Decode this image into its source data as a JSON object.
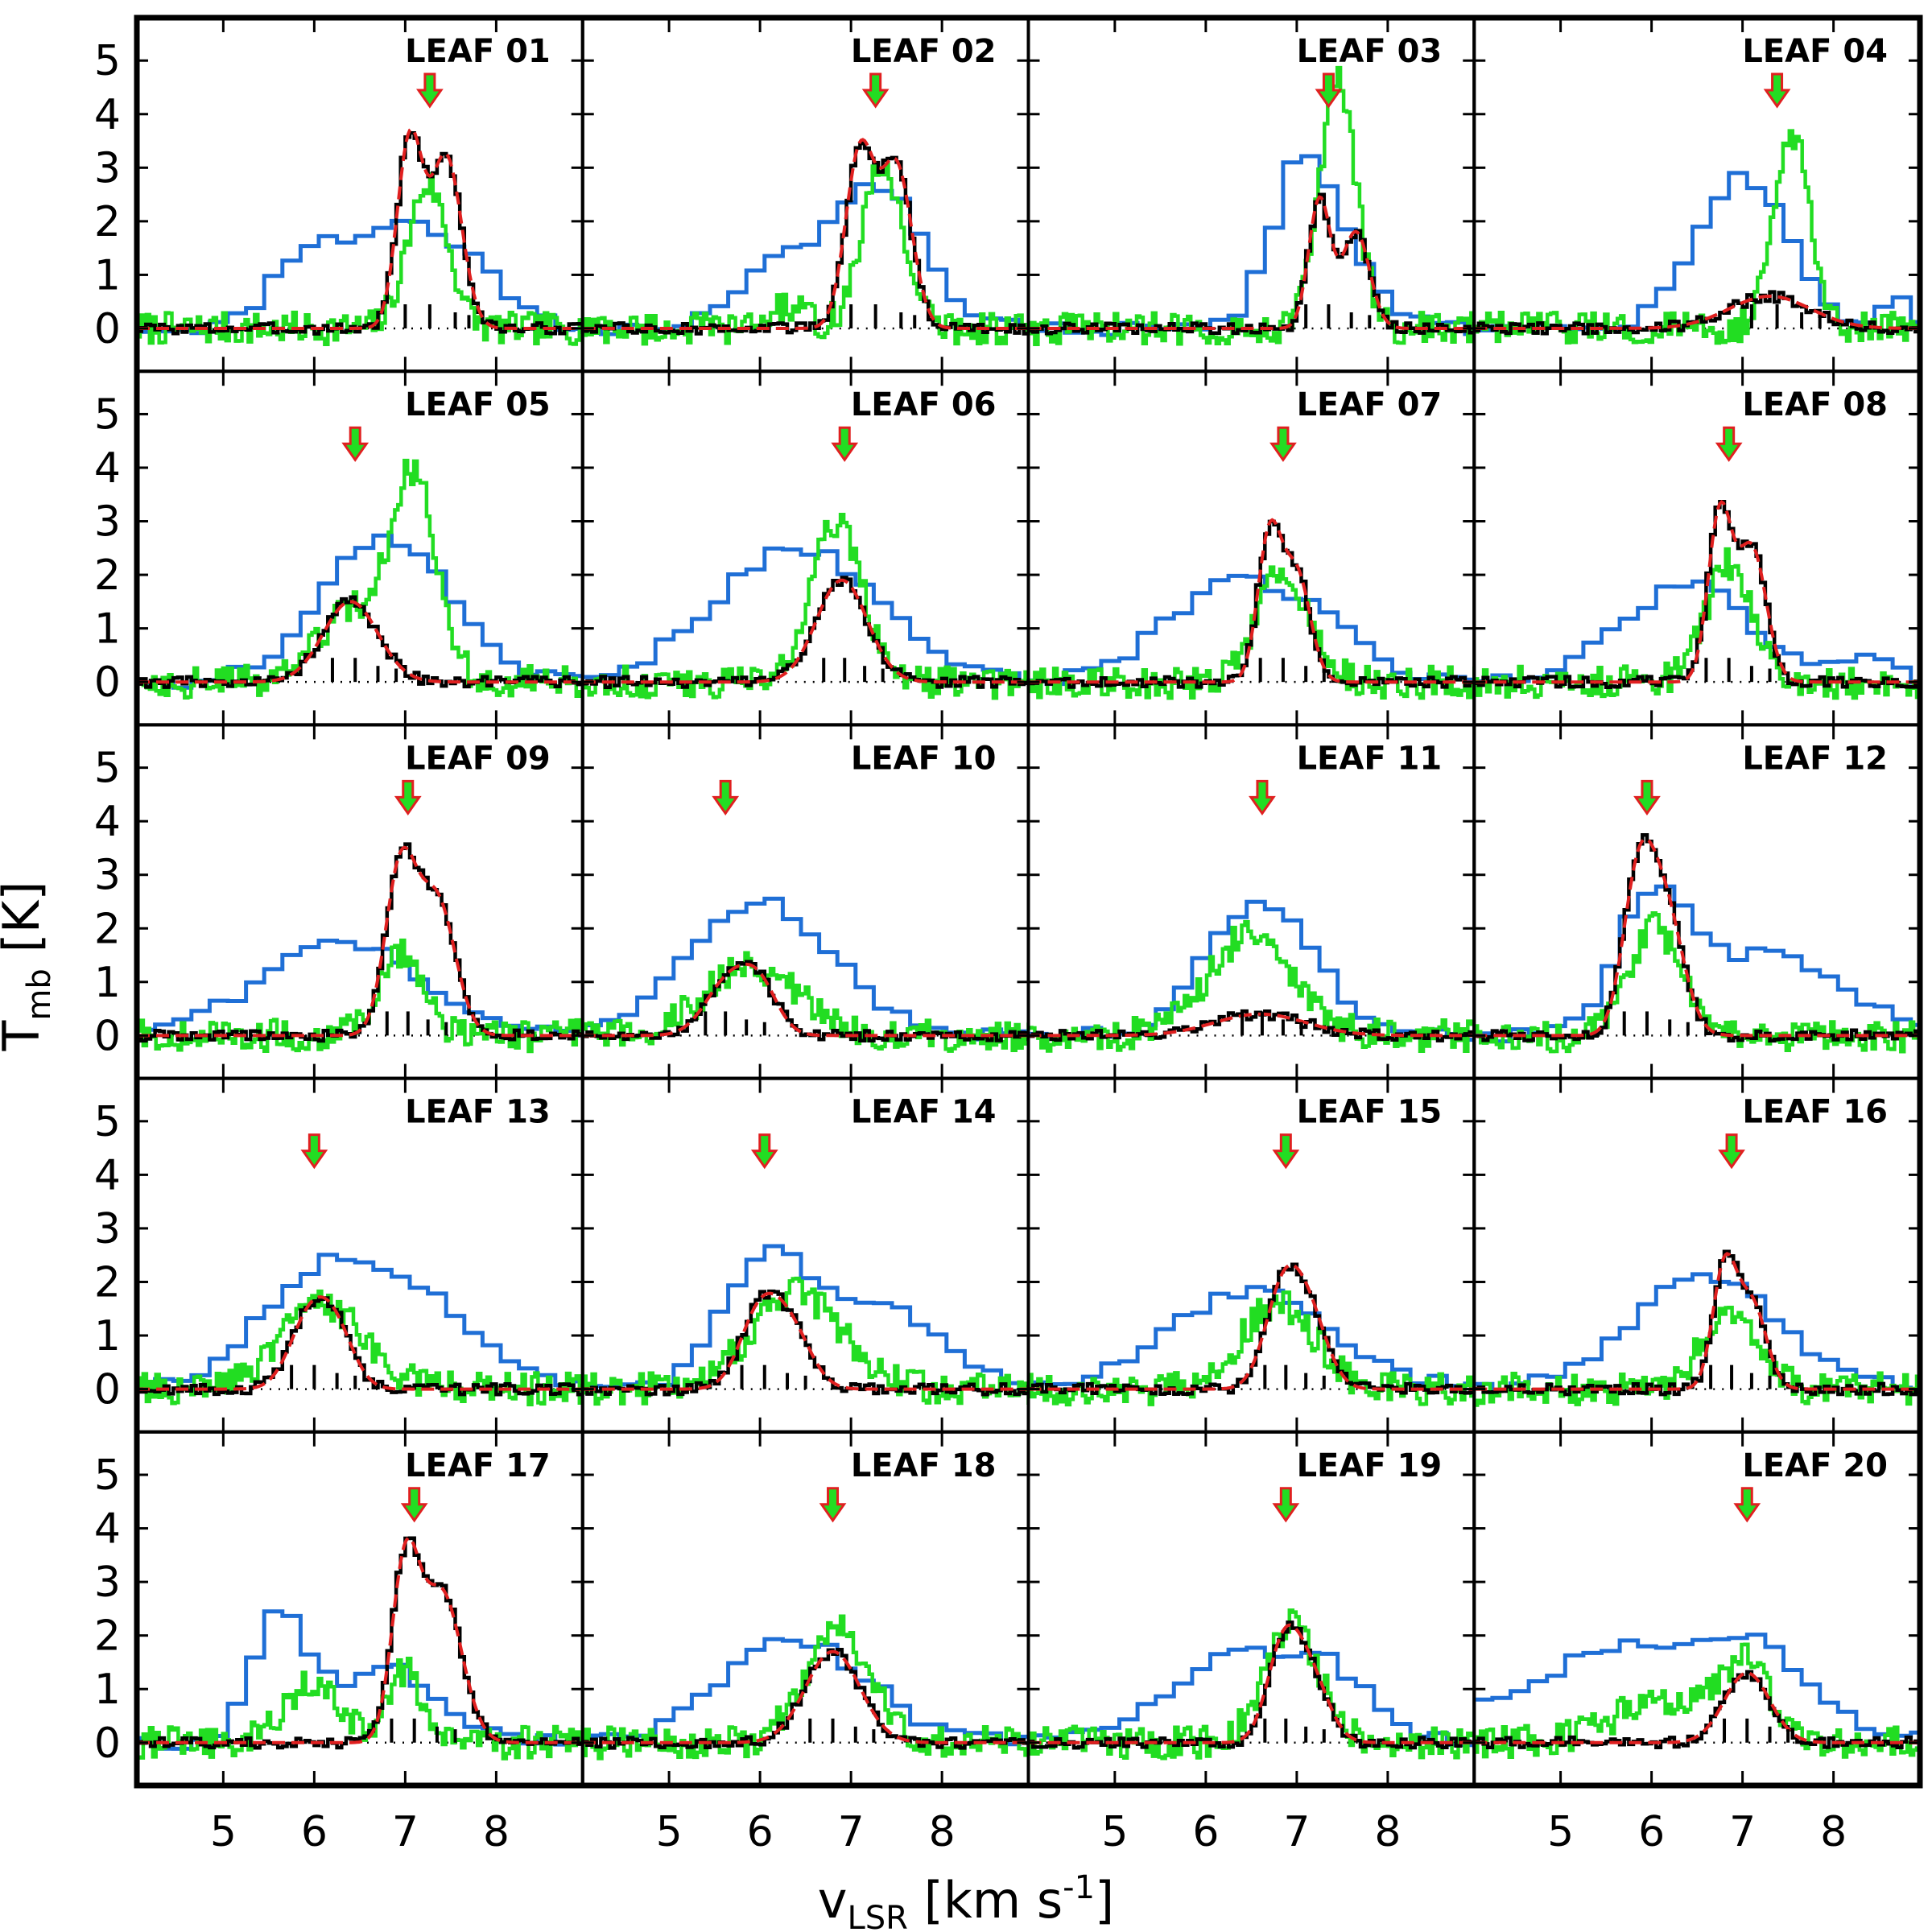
{
  "chart_data": {
    "type": "line",
    "layout": "5x4 grid of spectra",
    "xlabel": "v",
    "xlabel_sub": "LSR",
    "xlabel_units": " [km s",
    "xlabel_exp": "-1",
    "xlabel_close": "]",
    "ylabel": "T",
    "ylabel_sub": "mb",
    "ylabel_units": " [K]",
    "xlim": [
      4.05,
      8.95
    ],
    "ylim": [
      -0.8,
      5.8
    ],
    "xticks": [
      5,
      6,
      7,
      8
    ],
    "xtick_labels": [
      "5",
      "6",
      "7",
      "8"
    ],
    "yticks": [
      0,
      1,
      2,
      3,
      4,
      5
    ],
    "ytick_labels": [
      "0",
      "1",
      "2",
      "3",
      "4",
      "5"
    ],
    "series_styles": [
      {
        "name": "blue",
        "color": "#1f6fd6"
      },
      {
        "name": "green",
        "color": "#22dd22"
      },
      {
        "name": "black",
        "color": "#000000"
      },
      {
        "name": "fit",
        "color": "#e02020"
      }
    ],
    "arrow_colors": {
      "fill": "#22dd22",
      "outline": "#e02020"
    },
    "panels": [
      {
        "label": "LEAF 01",
        "arrow_v": 7.27,
        "blue": [
          {
            "c": 5.85,
            "w": 0.35,
            "a": 1.0
          },
          {
            "c": 7.0,
            "w": 0.7,
            "a": 2.0
          },
          {
            "c": 7.9,
            "w": 0.2,
            "a": 0.3
          }
        ],
        "green": [
          {
            "c": 7.25,
            "w": 0.22,
            "a": 2.7
          }
        ],
        "black": [
          {
            "c": 7.05,
            "w": 0.14,
            "a": 3.5
          },
          {
            "c": 7.45,
            "w": 0.17,
            "a": 3.2
          }
        ],
        "hfs": [
          {
            "v": 7.0,
            "h": 0.45
          },
          {
            "v": 7.27,
            "h": 0.45
          },
          {
            "v": 7.55,
            "h": 0.3
          },
          {
            "v": 7.7,
            "h": 0.25
          }
        ]
      },
      {
        "label": "LEAF 02",
        "arrow_v": 7.27,
        "blue": [
          {
            "c": 6.2,
            "w": 0.45,
            "a": 1.1
          },
          {
            "c": 7.3,
            "w": 0.5,
            "a": 2.6
          }
        ],
        "green": [
          {
            "c": 7.35,
            "w": 0.23,
            "a": 3.0
          },
          {
            "c": 6.3,
            "w": 0.2,
            "a": 0.4
          }
        ],
        "black": [
          {
            "c": 7.1,
            "w": 0.16,
            "a": 3.3
          },
          {
            "c": 7.5,
            "w": 0.17,
            "a": 3.0
          }
        ],
        "hfs": [
          {
            "v": 7.0,
            "h": 0.45
          },
          {
            "v": 7.27,
            "h": 0.45
          },
          {
            "v": 7.55,
            "h": 0.3
          },
          {
            "v": 7.7,
            "h": 0.25
          }
        ]
      },
      {
        "label": "LEAF 03",
        "arrow_v": 7.35,
        "blue": [
          {
            "c": 7.1,
            "w": 0.35,
            "a": 3.3
          },
          {
            "c": 7.8,
            "w": 0.3,
            "a": 0.6
          }
        ],
        "green": [
          {
            "c": 7.45,
            "w": 0.2,
            "a": 4.6
          }
        ],
        "black": [
          {
            "c": 7.25,
            "w": 0.12,
            "a": 2.4
          },
          {
            "c": 7.65,
            "w": 0.15,
            "a": 1.8
          }
        ],
        "hfs": [
          {
            "v": 7.1,
            "h": 0.45
          },
          {
            "v": 7.35,
            "h": 0.45
          },
          {
            "v": 7.6,
            "h": 0.3
          },
          {
            "v": 7.8,
            "h": 0.25
          }
        ]
      },
      {
        "label": "LEAF 04",
        "arrow_v": 7.38,
        "blue": [
          {
            "c": 7.0,
            "w": 0.5,
            "a": 2.8
          },
          {
            "c": 8.7,
            "w": 0.15,
            "a": 0.5
          }
        ],
        "green": [
          {
            "c": 7.55,
            "w": 0.2,
            "a": 3.6
          }
        ],
        "black": [
          {
            "c": 7.3,
            "w": 0.45,
            "a": 0.6
          }
        ],
        "hfs": [
          {
            "v": 7.1,
            "h": 0.45
          },
          {
            "v": 7.38,
            "h": 0.45
          },
          {
            "v": 7.65,
            "h": 0.3
          },
          {
            "v": 7.85,
            "h": 0.25
          }
        ]
      },
      {
        "label": "LEAF 05",
        "arrow_v": 6.45,
        "blue": [
          {
            "c": 6.8,
            "w": 0.7,
            "a": 2.7
          }
        ],
        "green": [
          {
            "c": 7.1,
            "w": 0.25,
            "a": 3.8
          },
          {
            "c": 6.4,
            "w": 0.35,
            "a": 1.3
          }
        ],
        "black": [
          {
            "c": 6.4,
            "w": 0.3,
            "a": 1.5
          }
        ],
        "hfs": [
          {
            "v": 6.2,
            "h": 0.45
          },
          {
            "v": 6.45,
            "h": 0.45
          },
          {
            "v": 6.7,
            "h": 0.3
          },
          {
            "v": 6.9,
            "h": 0.25
          }
        ]
      },
      {
        "label": "LEAF 06",
        "arrow_v": 6.93,
        "blue": [
          {
            "c": 6.4,
            "w": 0.9,
            "a": 2.5
          }
        ],
        "green": [
          {
            "c": 6.85,
            "w": 0.28,
            "a": 3.0
          }
        ],
        "black": [
          {
            "c": 6.9,
            "w": 0.28,
            "a": 1.9
          }
        ],
        "hfs": [
          {
            "v": 6.7,
            "h": 0.45
          },
          {
            "v": 6.93,
            "h": 0.45
          },
          {
            "v": 7.15,
            "h": 0.3
          },
          {
            "v": 7.35,
            "h": 0.25
          }
        ]
      },
      {
        "label": "LEAF 07",
        "arrow_v": 6.85,
        "blue": [
          {
            "c": 6.4,
            "w": 0.8,
            "a": 1.9
          },
          {
            "c": 7.5,
            "w": 0.3,
            "a": 0.4
          }
        ],
        "green": [
          {
            "c": 6.85,
            "w": 0.28,
            "a": 2.1
          }
        ],
        "black": [
          {
            "c": 6.7,
            "w": 0.13,
            "a": 2.7
          },
          {
            "c": 7.0,
            "w": 0.15,
            "a": 2.0
          }
        ],
        "hfs": [
          {
            "v": 6.6,
            "h": 0.45
          },
          {
            "v": 6.85,
            "h": 0.45
          },
          {
            "v": 7.1,
            "h": 0.3
          },
          {
            "v": 7.3,
            "h": 0.25
          }
        ]
      },
      {
        "label": "LEAF 08",
        "arrow_v": 6.85,
        "blue": [
          {
            "c": 6.5,
            "w": 0.6,
            "a": 1.8
          },
          {
            "c": 5.5,
            "w": 0.5,
            "a": 0.4
          },
          {
            "c": 8.3,
            "w": 0.4,
            "a": 0.4
          }
        ],
        "green": [
          {
            "c": 6.85,
            "w": 0.25,
            "a": 2.2
          }
        ],
        "black": [
          {
            "c": 6.75,
            "w": 0.13,
            "a": 3.1
          },
          {
            "c": 7.1,
            "w": 0.16,
            "a": 2.5
          }
        ],
        "hfs": [
          {
            "v": 6.6,
            "h": 0.45
          },
          {
            "v": 6.85,
            "h": 0.45
          },
          {
            "v": 7.1,
            "h": 0.3
          },
          {
            "v": 7.3,
            "h": 0.25
          }
        ]
      },
      {
        "label": "LEAF 09",
        "arrow_v": 7.03,
        "blue": [
          {
            "c": 6.3,
            "w": 0.9,
            "a": 1.7
          }
        ],
        "green": [
          {
            "c": 6.95,
            "w": 0.25,
            "a": 1.5
          }
        ],
        "black": [
          {
            "c": 6.95,
            "w": 0.17,
            "a": 3.1
          },
          {
            "c": 7.35,
            "w": 0.2,
            "a": 2.5
          }
        ],
        "hfs": [
          {
            "v": 6.8,
            "h": 0.45
          },
          {
            "v": 7.03,
            "h": 0.45
          },
          {
            "v": 7.25,
            "h": 0.3
          },
          {
            "v": 7.45,
            "h": 0.25
          }
        ]
      },
      {
        "label": "LEAF 10",
        "arrow_v": 5.62,
        "blue": [
          {
            "c": 6.0,
            "w": 0.8,
            "a": 2.5
          }
        ],
        "green": [
          {
            "c": 5.9,
            "w": 0.5,
            "a": 1.3
          }
        ],
        "black": [
          {
            "c": 5.65,
            "w": 0.25,
            "a": 1.0
          },
          {
            "c": 6.0,
            "w": 0.2,
            "a": 0.8
          }
        ],
        "hfs": [
          {
            "v": 5.4,
            "h": 0.45
          },
          {
            "v": 5.62,
            "h": 0.45
          },
          {
            "v": 5.85,
            "h": 0.3
          },
          {
            "v": 6.05,
            "h": 0.25
          }
        ]
      },
      {
        "label": "LEAF 11",
        "arrow_v": 6.62,
        "blue": [
          {
            "c": 6.6,
            "w": 0.6,
            "a": 2.4
          }
        ],
        "green": [
          {
            "c": 6.5,
            "w": 0.45,
            "a": 1.9
          }
        ],
        "black": [
          {
            "c": 6.6,
            "w": 0.5,
            "a": 0.4
          }
        ],
        "hfs": [
          {
            "v": 6.4,
            "h": 0.45
          },
          {
            "v": 6.62,
            "h": 0.45
          },
          {
            "v": 6.85,
            "h": 0.3
          },
          {
            "v": 7.05,
            "h": 0.25
          }
        ]
      },
      {
        "label": "LEAF 12",
        "arrow_v": 5.95,
        "blue": [
          {
            "c": 6.0,
            "w": 0.4,
            "a": 2.3
          },
          {
            "c": 7.3,
            "w": 0.8,
            "a": 1.5
          }
        ],
        "green": [
          {
            "c": 6.05,
            "w": 0.28,
            "a": 2.0
          }
        ],
        "black": [
          {
            "c": 5.85,
            "w": 0.17,
            "a": 2.7
          },
          {
            "c": 6.15,
            "w": 0.2,
            "a": 2.3
          }
        ],
        "hfs": [
          {
            "v": 5.7,
            "h": 0.45
          },
          {
            "v": 5.95,
            "h": 0.45
          },
          {
            "v": 6.2,
            "h": 0.3
          },
          {
            "v": 6.4,
            "h": 0.25
          }
        ]
      },
      {
        "label": "LEAF 13",
        "arrow_v": 6.0,
        "blue": [
          {
            "c": 6.1,
            "w": 0.7,
            "a": 2.2
          },
          {
            "c": 7.3,
            "w": 0.6,
            "a": 1.3
          }
        ],
        "green": [
          {
            "c": 6.1,
            "w": 0.45,
            "a": 1.6
          }
        ],
        "black": [
          {
            "c": 5.95,
            "w": 0.22,
            "a": 1.3
          },
          {
            "c": 6.25,
            "w": 0.2,
            "a": 0.9
          }
        ],
        "hfs": [
          {
            "v": 5.75,
            "h": 0.45
          },
          {
            "v": 6.0,
            "h": 0.45
          },
          {
            "v": 6.25,
            "h": 0.3
          },
          {
            "v": 6.45,
            "h": 0.25
          }
        ]
      },
      {
        "label": "LEAF 14",
        "arrow_v": 6.05,
        "blue": [
          {
            "c": 6.1,
            "w": 0.5,
            "a": 2.4
          },
          {
            "c": 7.4,
            "w": 0.6,
            "a": 1.5
          }
        ],
        "green": [
          {
            "c": 6.4,
            "w": 0.5,
            "a": 1.8
          }
        ],
        "black": [
          {
            "c": 6.0,
            "w": 0.22,
            "a": 1.4
          },
          {
            "c": 6.35,
            "w": 0.22,
            "a": 1.0
          }
        ],
        "hfs": [
          {
            "v": 5.8,
            "h": 0.45
          },
          {
            "v": 6.05,
            "h": 0.45
          },
          {
            "v": 6.3,
            "h": 0.3
          },
          {
            "v": 6.5,
            "h": 0.25
          }
        ]
      },
      {
        "label": "LEAF 15",
        "arrow_v": 6.88,
        "blue": [
          {
            "c": 6.5,
            "w": 0.9,
            "a": 1.8
          }
        ],
        "green": [
          {
            "c": 6.8,
            "w": 0.4,
            "a": 1.6
          }
        ],
        "black": [
          {
            "c": 6.85,
            "w": 0.2,
            "a": 1.8
          },
          {
            "c": 7.15,
            "w": 0.2,
            "a": 1.2
          }
        ],
        "hfs": [
          {
            "v": 6.65,
            "h": 0.45
          },
          {
            "v": 6.88,
            "h": 0.45
          },
          {
            "v": 7.1,
            "h": 0.3
          },
          {
            "v": 7.3,
            "h": 0.25
          }
        ]
      },
      {
        "label": "LEAF 16",
        "arrow_v": 6.88,
        "blue": [
          {
            "c": 6.6,
            "w": 0.8,
            "a": 2.1
          }
        ],
        "green": [
          {
            "c": 6.85,
            "w": 0.3,
            "a": 1.4
          }
        ],
        "black": [
          {
            "c": 6.8,
            "w": 0.13,
            "a": 2.2
          },
          {
            "c": 7.1,
            "w": 0.16,
            "a": 1.6
          }
        ],
        "hfs": [
          {
            "v": 6.65,
            "h": 0.45
          },
          {
            "v": 6.88,
            "h": 0.45
          },
          {
            "v": 7.1,
            "h": 0.3
          },
          {
            "v": 7.3,
            "h": 0.25
          }
        ]
      },
      {
        "label": "LEAF 17",
        "arrow_v": 7.1,
        "blue": [
          {
            "c": 5.6,
            "w": 0.3,
            "a": 2.3
          },
          {
            "c": 6.8,
            "w": 0.6,
            "a": 1.4
          }
        ],
        "green": [
          {
            "c": 6.0,
            "w": 0.3,
            "a": 1.1
          },
          {
            "c": 7.0,
            "w": 0.2,
            "a": 1.3
          }
        ],
        "black": [
          {
            "c": 7.0,
            "w": 0.15,
            "a": 3.2
          },
          {
            "c": 7.4,
            "w": 0.22,
            "a": 2.8
          }
        ],
        "hfs": [
          {
            "v": 6.85,
            "h": 0.45
          },
          {
            "v": 7.1,
            "h": 0.45
          },
          {
            "v": 7.35,
            "h": 0.3
          },
          {
            "v": 7.55,
            "h": 0.25
          }
        ]
      },
      {
        "label": "LEAF 18",
        "arrow_v": 6.8,
        "blue": [
          {
            "c": 6.4,
            "w": 0.8,
            "a": 1.9
          }
        ],
        "green": [
          {
            "c": 6.85,
            "w": 0.35,
            "a": 2.1
          }
        ],
        "black": [
          {
            "c": 6.8,
            "w": 0.3,
            "a": 1.7
          }
        ],
        "hfs": [
          {
            "v": 6.55,
            "h": 0.45
          },
          {
            "v": 6.8,
            "h": 0.45
          },
          {
            "v": 7.05,
            "h": 0.3
          },
          {
            "v": 7.25,
            "h": 0.25
          }
        ]
      },
      {
        "label": "LEAF 19",
        "arrow_v": 6.88,
        "blue": [
          {
            "c": 6.4,
            "w": 0.8,
            "a": 1.6
          },
          {
            "c": 7.4,
            "w": 0.4,
            "a": 0.8
          }
        ],
        "green": [
          {
            "c": 6.95,
            "w": 0.3,
            "a": 2.2
          }
        ],
        "black": [
          {
            "c": 6.85,
            "w": 0.18,
            "a": 1.7
          },
          {
            "c": 7.15,
            "w": 0.2,
            "a": 1.2
          }
        ],
        "hfs": [
          {
            "v": 6.65,
            "h": 0.45
          },
          {
            "v": 6.88,
            "h": 0.45
          },
          {
            "v": 7.1,
            "h": 0.3
          },
          {
            "v": 7.3,
            "h": 0.25
          }
        ]
      },
      {
        "label": "LEAF 20",
        "arrow_v": 7.05,
        "blue": [
          {
            "c": 6.0,
            "w": 1.3,
            "a": 1.9
          },
          {
            "c": 7.2,
            "w": 0.35,
            "a": 0.7
          }
        ],
        "green": [
          {
            "c": 6.2,
            "w": 0.6,
            "a": 0.8
          },
          {
            "c": 7.05,
            "w": 0.25,
            "a": 1.3
          }
        ],
        "black": [
          {
            "c": 7.05,
            "w": 0.25,
            "a": 1.3
          }
        ],
        "hfs": [
          {
            "v": 6.8,
            "h": 0.45
          },
          {
            "v": 7.05,
            "h": 0.45
          },
          {
            "v": 7.3,
            "h": 0.3
          },
          {
            "v": 7.5,
            "h": 0.25
          }
        ]
      }
    ]
  }
}
